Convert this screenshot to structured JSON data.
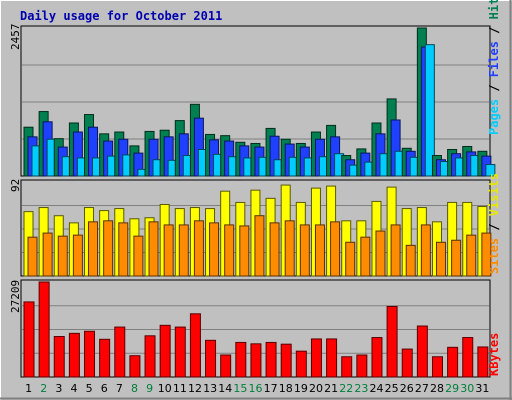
{
  "title": "Daily usage for October 2011",
  "legends": {
    "top": [
      {
        "text": "Pages",
        "color": "#00ccff"
      },
      {
        "text": " / ",
        "color": "#000000"
      },
      {
        "text": "Files",
        "color": "#2040ff"
      },
      {
        "text": " / ",
        "color": "#000000"
      },
      {
        "text": "Hits",
        "color": "#008050"
      }
    ],
    "middle": [
      {
        "text": "Sites",
        "color": "#ff8c00"
      },
      {
        "text": " / ",
        "color": "#000000"
      },
      {
        "text": "Visits",
        "color": "#e8e800"
      }
    ],
    "bottom": [
      {
        "text": "KBytes",
        "color": "#ff0000"
      }
    ]
  },
  "chart_data": [
    {
      "type": "bar",
      "panel": "hits-files-pages",
      "categories": [
        "1",
        "2",
        "3",
        "4",
        "5",
        "6",
        "7",
        "8",
        "9",
        "10",
        "11",
        "12",
        "13",
        "14",
        "15",
        "16",
        "17",
        "18",
        "19",
        "20",
        "21",
        "22",
        "23",
        "24",
        "25",
        "26",
        "27",
        "28",
        "29",
        "30",
        "31"
      ],
      "ymax_label": "2457",
      "ylim": [
        0,
        2457
      ],
      "grid": true,
      "series": [
        {
          "name": "Hits",
          "color": "#008050",
          "values": [
            810,
            1070,
            620,
            880,
            1020,
            700,
            730,
            500,
            740,
            760,
            920,
            1190,
            690,
            670,
            560,
            540,
            790,
            610,
            540,
            730,
            840,
            340,
            450,
            880,
            1280,
            460,
            2457,
            340,
            440,
            490,
            410
          ]
        },
        {
          "name": "Files",
          "color": "#2040ff",
          "values": [
            650,
            900,
            480,
            730,
            810,
            580,
            610,
            380,
            610,
            650,
            700,
            960,
            600,
            580,
            500,
            480,
            660,
            530,
            480,
            610,
            650,
            270,
            380,
            700,
            930,
            410,
            2140,
            270,
            370,
            400,
            330
          ]
        },
        {
          "name": "Pages",
          "color": "#00ccff",
          "values": [
            500,
            610,
            320,
            300,
            300,
            330,
            350,
            110,
            270,
            260,
            340,
            440,
            360,
            320,
            300,
            310,
            270,
            310,
            300,
            320,
            370,
            180,
            230,
            370,
            410,
            310,
            2180,
            240,
            300,
            340,
            190
          ]
        }
      ]
    },
    {
      "type": "bar",
      "panel": "visits-sites",
      "categories": [
        "1",
        "2",
        "3",
        "4",
        "5",
        "6",
        "7",
        "8",
        "9",
        "10",
        "11",
        "12",
        "13",
        "14",
        "15",
        "16",
        "17",
        "18",
        "19",
        "20",
        "21",
        "22",
        "23",
        "24",
        "25",
        "26",
        "27",
        "28",
        "29",
        "30",
        "31"
      ],
      "ymax_label": "92",
      "ylim": [
        0,
        92
      ],
      "grid": true,
      "series": [
        {
          "name": "Visits",
          "color": "#ffff00",
          "values": [
            63,
            67,
            59,
            52,
            67,
            64,
            66,
            56,
            57,
            70,
            66,
            67,
            66,
            83,
            72,
            84,
            76,
            89,
            72,
            86,
            88,
            54,
            54,
            73,
            87,
            66,
            67,
            53,
            72,
            72,
            68
          ]
        },
        {
          "name": "Sites",
          "color": "#ff8c00",
          "values": [
            38,
            42,
            39,
            40,
            53,
            54,
            52,
            39,
            53,
            50,
            50,
            54,
            52,
            50,
            49,
            59,
            52,
            54,
            50,
            50,
            53,
            33,
            38,
            44,
            50,
            30,
            50,
            33,
            35,
            40,
            42
          ]
        }
      ]
    },
    {
      "type": "bar",
      "panel": "kbytes",
      "categories": [
        "1",
        "2",
        "3",
        "4",
        "5",
        "6",
        "7",
        "8",
        "9",
        "10",
        "11",
        "12",
        "13",
        "14",
        "15",
        "16",
        "17",
        "18",
        "19",
        "20",
        "21",
        "22",
        "23",
        "24",
        "25",
        "26",
        "27",
        "28",
        "29",
        "30",
        "31"
      ],
      "ymax_label": "27209",
      "ylim": [
        0,
        27209
      ],
      "grid": true,
      "series": [
        {
          "name": "KBytes",
          "color": "#ff0000",
          "values": [
            21500,
            27209,
            11600,
            12500,
            13100,
            10800,
            14300,
            6100,
            11800,
            14800,
            14300,
            18100,
            10500,
            6300,
            9900,
            9500,
            9900,
            9400,
            7400,
            10900,
            10900,
            5800,
            6300,
            11300,
            20200,
            8000,
            14600,
            5800,
            8500,
            11300,
            8600
          ]
        }
      ]
    }
  ],
  "days": [
    {
      "label": "1",
      "weekend": false
    },
    {
      "label": "2",
      "weekend": true
    },
    {
      "label": "3",
      "weekend": false
    },
    {
      "label": "4",
      "weekend": false
    },
    {
      "label": "5",
      "weekend": false
    },
    {
      "label": "6",
      "weekend": false
    },
    {
      "label": "7",
      "weekend": false
    },
    {
      "label": "8",
      "weekend": true
    },
    {
      "label": "9",
      "weekend": true
    },
    {
      "label": "10",
      "weekend": false
    },
    {
      "label": "11",
      "weekend": false
    },
    {
      "label": "12",
      "weekend": false
    },
    {
      "label": "13",
      "weekend": false
    },
    {
      "label": "14",
      "weekend": false
    },
    {
      "label": "15",
      "weekend": true
    },
    {
      "label": "16",
      "weekend": true
    },
    {
      "label": "17",
      "weekend": false
    },
    {
      "label": "18",
      "weekend": false
    },
    {
      "label": "19",
      "weekend": false
    },
    {
      "label": "20",
      "weekend": false
    },
    {
      "label": "21",
      "weekend": false
    },
    {
      "label": "22",
      "weekend": true
    },
    {
      "label": "23",
      "weekend": true
    },
    {
      "label": "24",
      "weekend": false
    },
    {
      "label": "25",
      "weekend": false
    },
    {
      "label": "26",
      "weekend": false
    },
    {
      "label": "27",
      "weekend": false
    },
    {
      "label": "28",
      "weekend": false
    },
    {
      "label": "29",
      "weekend": true
    },
    {
      "label": "30",
      "weekend": true
    },
    {
      "label": "31",
      "weekend": false
    }
  ],
  "colors": {
    "background": "#c0c0c0",
    "weekday_label": "#000000",
    "weekend_label": "#00803c",
    "title": "#0000b0",
    "gridline": "#808080"
  }
}
